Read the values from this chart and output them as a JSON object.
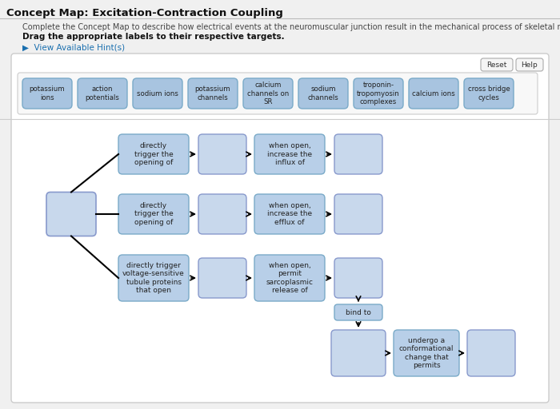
{
  "title": "Concept Map: Excitation-Contraction Coupling",
  "instructions": "Complete the Concept Map to describe how electrical events at the neuromuscular junction result in the mechanical process of skeletal muscle fiber contraction",
  "bold_instruction": "Drag the appropriate labels to their respective targets.",
  "hint_text": "▶  View Available Hint(s)",
  "bg_color": "#f0f0f0",
  "panel_bg": "#ffffff",
  "label_box_fill": "#a8c4e0",
  "label_box_edge": "#7aaac8",
  "blank_box_fill": "#c8d8ec",
  "blank_box_edge": "#8899cc",
  "text_box_fill": "#b8cfe8",
  "text_box_edge": "#7aaac8",
  "labels": [
    "potassium\nions",
    "action\npotentials",
    "sodium ions",
    "potassium\nchannels",
    "calcium\nchannels on\nSR",
    "sodium\nchannels",
    "troponin-\ntropomyosin\ncomplexes",
    "calcium ions",
    "cross bridge\ncycles"
  ],
  "row1_text": "directly\ntrigger the\nopening of",
  "row2_text": "directly\ntrigger the\nopening of",
  "row3_text": "directly trigger\nvoltage-sensitive\ntubule proteins\nthat open",
  "row1_when": "when open,\nincrease the\ninflux of",
  "row2_when": "when open,\nincrease the\nefflux of",
  "row3_when": "when open,\npermit\nsarcoplasmic\nrelease of",
  "bind_text": "bind to",
  "conform_text": "undergo a\nconformational\nchange that\npermits"
}
